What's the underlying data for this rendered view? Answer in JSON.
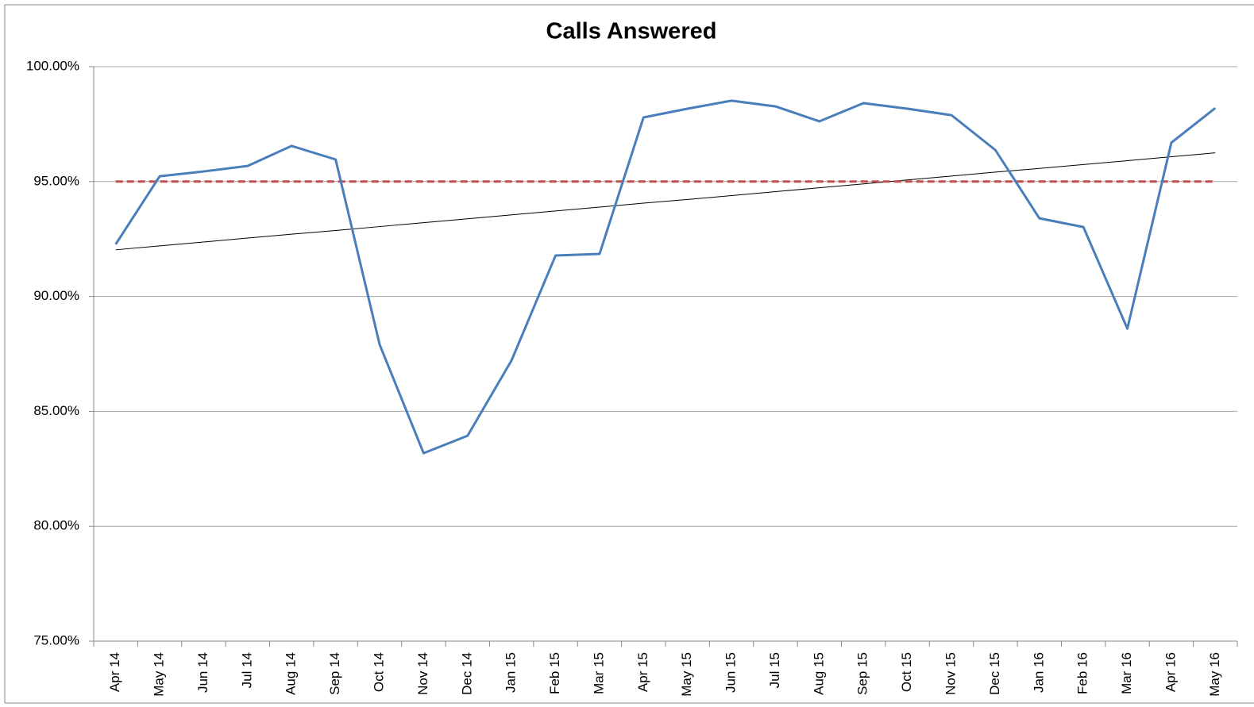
{
  "chart_data": {
    "type": "line",
    "title": "Calls Answered",
    "categories": [
      "Apr 14",
      "May 14",
      "Jun 14",
      "Jul 14",
      "Aug 14",
      "Sep 14",
      "Oct 14",
      "Nov 14",
      "Dec 14",
      "Jan 15",
      "Feb 15",
      "Mar 15",
      "Apr 15",
      "May 15",
      "Jun 15",
      "Jul 15",
      "Aug 15",
      "Sep 15",
      "Oct 15",
      "Nov 15",
      "Dec 15",
      "Jan 16",
      "Feb 16",
      "Mar 16",
      "Apr 16",
      "May 16"
    ],
    "series": [
      {
        "color": "#4a7ebb",
        "width": 3,
        "dashed": false,
        "values": [
          92.27,
          95.23,
          95.44,
          95.68,
          96.55,
          95.96,
          87.91,
          83.18,
          83.94,
          87.22,
          91.78,
          91.85,
          97.79,
          98.17,
          98.52,
          98.27,
          97.62,
          98.41,
          98.17,
          97.89,
          96.37,
          93.4,
          93.02,
          88.6,
          96.69,
          98.2
        ]
      },
      {
        "color": "#c0504d",
        "width": 3,
        "dashed": true,
        "values": [
          95,
          95,
          95,
          95,
          95,
          95,
          95,
          95,
          95,
          95,
          95,
          95,
          95,
          95,
          95,
          95,
          95,
          95,
          95,
          95,
          95,
          95,
          95,
          95,
          95,
          95
        ]
      },
      {
        "color": "#000000",
        "width": 1,
        "dashed": false,
        "values": [
          92.03,
          92.2,
          92.37,
          92.54,
          92.71,
          92.87,
          93.04,
          93.21,
          93.38,
          93.55,
          93.72,
          93.89,
          94.06,
          94.22,
          94.39,
          94.56,
          94.73,
          94.9,
          95.07,
          95.24,
          95.41,
          95.57,
          95.74,
          95.91,
          96.08,
          96.25
        ]
      }
    ],
    "ylim": [
      75,
      100
    ],
    "yticks": [
      {
        "value": 75,
        "label": "75.00%"
      },
      {
        "value": 80,
        "label": "80.00%"
      },
      {
        "value": 85,
        "label": "85.00%"
      },
      {
        "value": 90,
        "label": "90.00%"
      },
      {
        "value": 95,
        "label": "95.00%"
      },
      {
        "value": 100,
        "label": "100.00%"
      }
    ],
    "grid": true
  }
}
